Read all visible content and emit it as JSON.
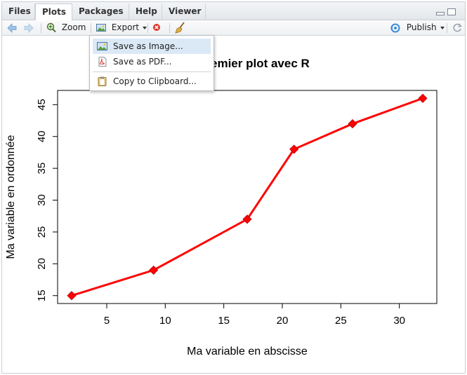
{
  "tabs": [
    {
      "label": "Files",
      "active": false
    },
    {
      "label": "Plots",
      "active": true
    },
    {
      "label": "Packages",
      "active": false
    },
    {
      "label": "Help",
      "active": false
    },
    {
      "label": "Viewer",
      "active": false
    }
  ],
  "toolbar": {
    "zoom_label": "Zoom",
    "export_label": "Export",
    "publish_label": "Publish"
  },
  "export_menu": {
    "items": [
      {
        "label": "Save as Image...",
        "icon": "image-icon",
        "highlighted": true
      },
      {
        "label": "Save as PDF...",
        "icon": "pdf-icon",
        "highlighted": false
      },
      {
        "label": "Copy to Clipboard...",
        "icon": "clipboard-icon",
        "highlighted": false
      }
    ]
  },
  "colors": {
    "line": "#ff0000",
    "accent": "#3b8ed8"
  },
  "chart_data": {
    "type": "line",
    "title": "emier plot avec R",
    "xlabel": "Ma variable en abscisse",
    "ylabel": "Ma variable en ordonnée",
    "x": [
      2,
      9,
      17,
      21,
      26,
      32
    ],
    "y": [
      15,
      19,
      27,
      38,
      42,
      46
    ],
    "xlim": [
      0.8,
      33.2
    ],
    "ylim": [
      13.76,
      47.24
    ],
    "xticks": [
      5,
      10,
      15,
      20,
      25,
      30
    ],
    "yticks": [
      15,
      20,
      25,
      30,
      35,
      40,
      45
    ],
    "marker": "diamond",
    "grid": false
  }
}
